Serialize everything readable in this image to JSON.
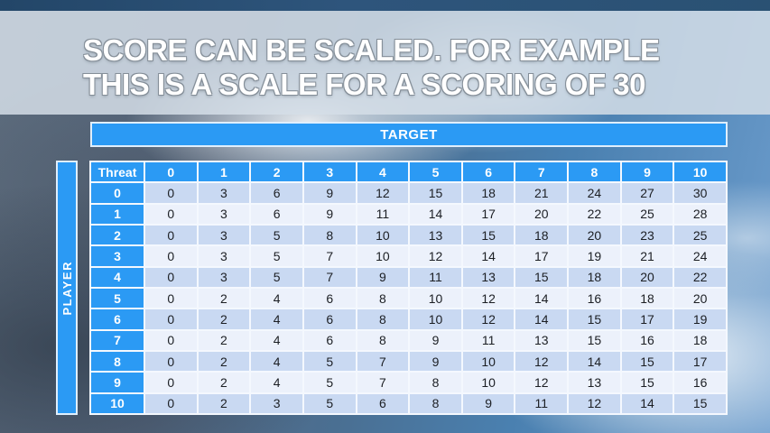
{
  "slide": {
    "title_line1": "SCORE CAN BE SCALED. FOR EXAMPLE",
    "title_line2": "THIS IS A SCALE FOR A SCORING OF 30"
  },
  "table": {
    "target_label": "TARGET",
    "player_label": "PLAYER",
    "corner_label": "Threat",
    "column_headers": [
      "0",
      "1",
      "2",
      "3",
      "4",
      "5",
      "6",
      "7",
      "8",
      "9",
      "10"
    ],
    "row_headers": [
      "0",
      "1",
      "2",
      "3",
      "4",
      "5",
      "6",
      "7",
      "8",
      "9",
      "10"
    ],
    "rows": [
      [
        0,
        3,
        6,
        9,
        12,
        15,
        18,
        21,
        24,
        27,
        30
      ],
      [
        0,
        3,
        6,
        9,
        11,
        14,
        17,
        20,
        22,
        25,
        28
      ],
      [
        0,
        3,
        5,
        8,
        10,
        13,
        15,
        18,
        20,
        23,
        25
      ],
      [
        0,
        3,
        5,
        7,
        10,
        12,
        14,
        17,
        19,
        21,
        24
      ],
      [
        0,
        3,
        5,
        7,
        9,
        11,
        13,
        15,
        18,
        20,
        22
      ],
      [
        0,
        2,
        4,
        6,
        8,
        10,
        12,
        14,
        16,
        18,
        20
      ],
      [
        0,
        2,
        4,
        6,
        8,
        10,
        12,
        14,
        15,
        17,
        19
      ],
      [
        0,
        2,
        4,
        6,
        8,
        9,
        11,
        13,
        15,
        16,
        18
      ],
      [
        0,
        2,
        4,
        5,
        7,
        9,
        10,
        12,
        14,
        15,
        17
      ],
      [
        0,
        2,
        4,
        5,
        7,
        8,
        10,
        12,
        13,
        15,
        16
      ],
      [
        0,
        2,
        3,
        5,
        6,
        8,
        9,
        11,
        12,
        14,
        15
      ]
    ]
  },
  "colors": {
    "accent_blue": "#2b9af4",
    "row_even": "#c9d9f2",
    "row_odd": "#ecf1fb",
    "grid_line": "#f4f8fe",
    "top_strip": "#2a4d70",
    "title_band": "#d5dee7",
    "title_text": "#ffffff",
    "body_text": "#1c1f24"
  }
}
